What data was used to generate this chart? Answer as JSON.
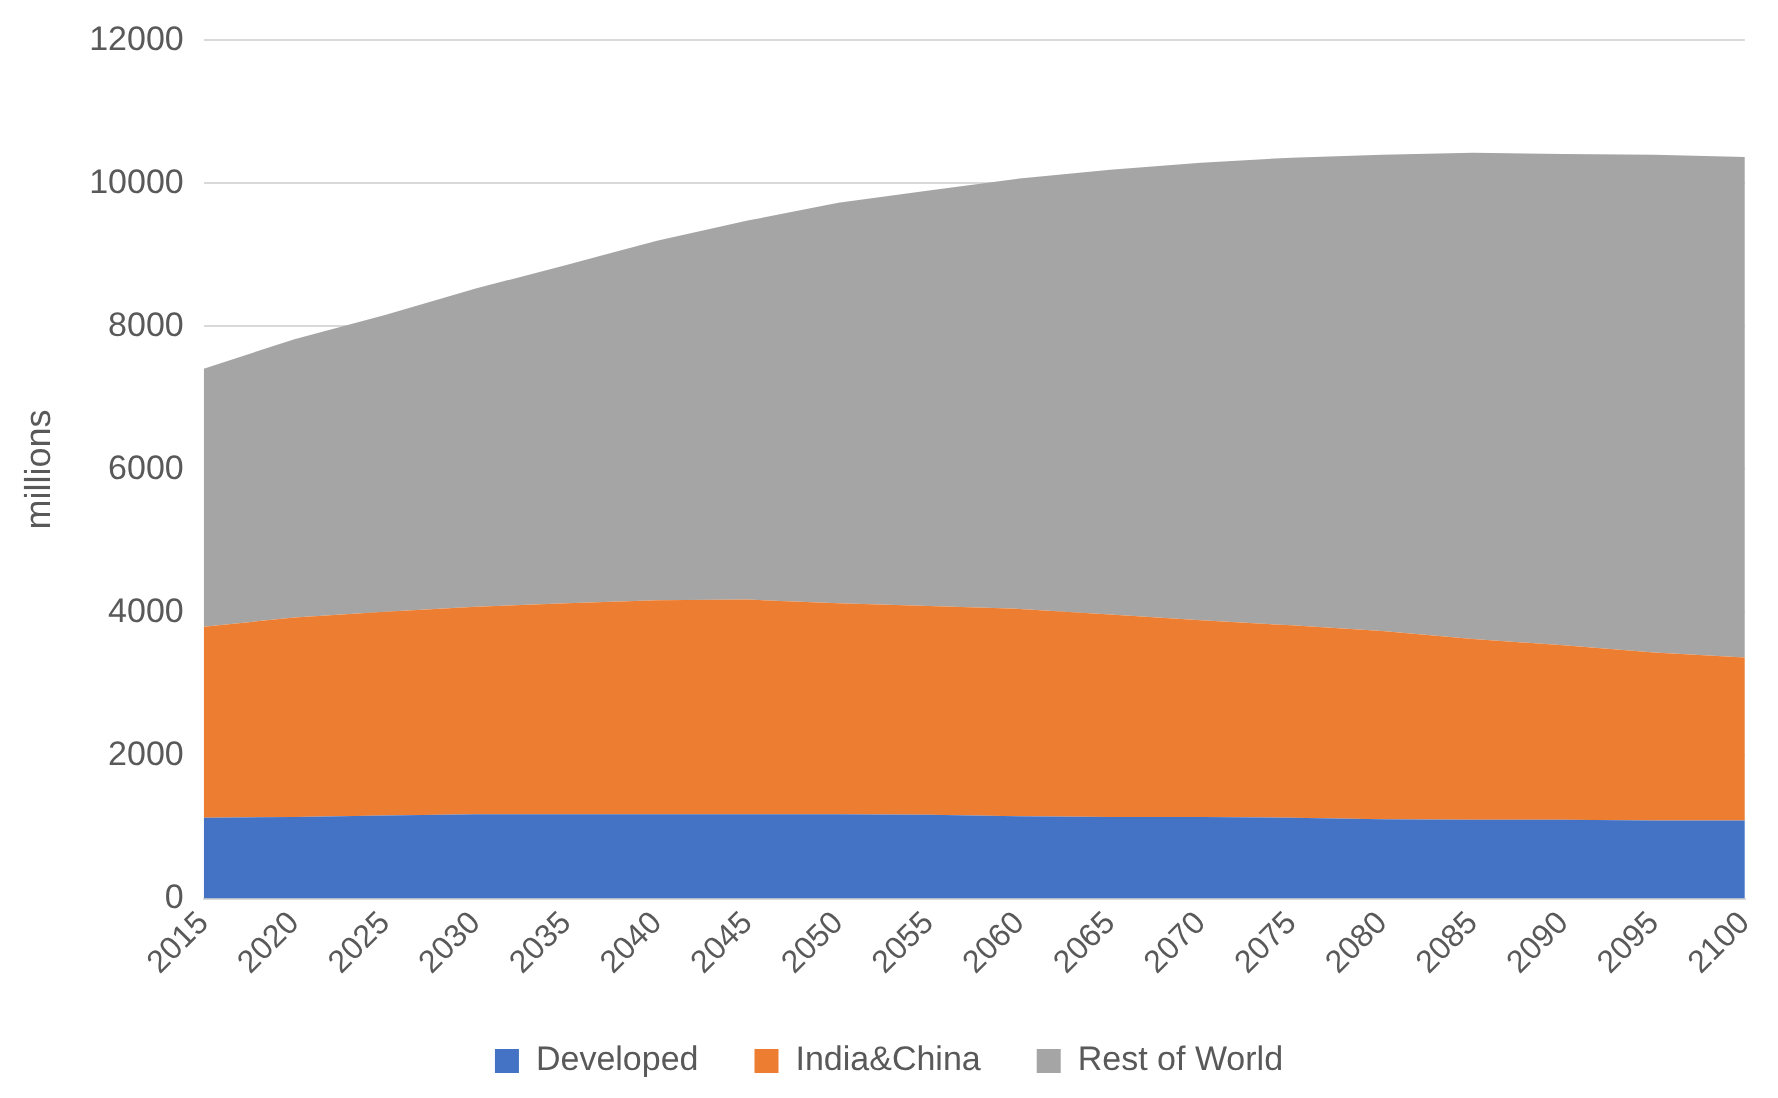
{
  "chart_data": {
    "type": "area",
    "stacked": true,
    "ylabel": "millions",
    "categories": [
      "2015",
      "2020",
      "2025",
      "2030",
      "2035",
      "2040",
      "2045",
      "2050",
      "2055",
      "2060",
      "2065",
      "2070",
      "2075",
      "2080",
      "2085",
      "2090",
      "2095",
      "2100"
    ],
    "series": [
      {
        "name": "Developed",
        "color": "#4472c4",
        "values": [
          1130,
          1140,
          1160,
          1180,
          1180,
          1180,
          1180,
          1180,
          1170,
          1150,
          1140,
          1140,
          1130,
          1110,
          1100,
          1100,
          1090,
          1090
        ]
      },
      {
        "name": "India&China",
        "color": "#ed7d31",
        "values": [
          2670,
          2790,
          2850,
          2900,
          2950,
          2990,
          3000,
          2950,
          2920,
          2900,
          2830,
          2750,
          2690,
          2630,
          2530,
          2440,
          2350,
          2280
        ]
      },
      {
        "name": "Rest of World",
        "color": "#a5a5a5",
        "values": [
          3610,
          3890,
          4150,
          4450,
          4730,
          5030,
          5300,
          5600,
          5810,
          6020,
          6220,
          6400,
          6540,
          6660,
          6800,
          6870,
          6960,
          7000
        ]
      }
    ],
    "ylim": [
      0,
      12000
    ],
    "yticks": [
      0,
      2000,
      4000,
      6000,
      8000,
      10000,
      12000
    ],
    "grid": "y",
    "legend": "bottom"
  }
}
